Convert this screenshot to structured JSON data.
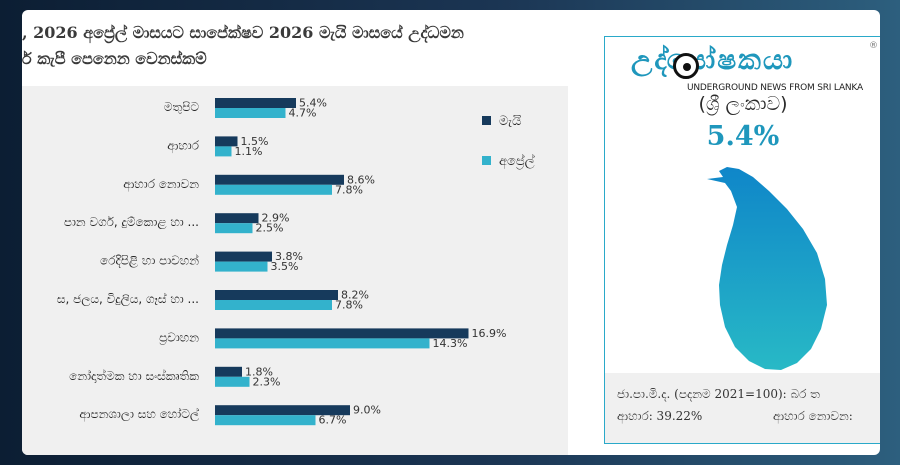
{
  "title_lines": [
    ", 2026 අප්‍රේල් මාසයට සාපේක්ෂව 2026 මැයි මාසයේ උද්ධමන",
    "ර් කැපී පෙනෙන වෙනස්කම්"
  ],
  "chart_data": {
    "type": "bar",
    "orientation": "horizontal",
    "categories": [
      "මතුපිට",
      "ආහාර",
      "ආහාර නොවන",
      "පාන වර්ග, දුම්කොළ හා ...",
      "රෙදිපිළි හා පාවහන්",
      "ස, ජලය, විදුලිය, ගෑස් හා ...",
      "ප්‍රවාහන",
      "නෝදාත්මක හා සංස්කෘතික",
      "ආපනශාලා සහ හෝටල්"
    ],
    "series": [
      {
        "name": "මැයි",
        "color": "#163a5c",
        "values": [
          5.4,
          1.5,
          8.6,
          2.9,
          3.8,
          8.2,
          16.9,
          1.8,
          9.0
        ]
      },
      {
        "name": "අප්‍රේල්",
        "color": "#33b2cc",
        "values": [
          4.7,
          1.1,
          7.8,
          2.5,
          3.5,
          7.8,
          14.3,
          2.3,
          6.7
        ]
      }
    ],
    "value_labels": [
      [
        "5.4%",
        "4.7%"
      ],
      [
        "1.5%",
        "1.1%"
      ],
      [
        "8.6%",
        "7.8%"
      ],
      [
        "2.9%",
        "2.5%"
      ],
      [
        "3.8%",
        "3.5%"
      ],
      [
        "8.2%",
        "7.8%"
      ],
      [
        "16.9%",
        "14.3%"
      ],
      [
        "1.8%",
        "2.3%"
      ],
      [
        "9.0%",
        "6.7%"
      ]
    ],
    "xlim": [
      0,
      20
    ],
    "grid": false,
    "legend_position": "top-right"
  },
  "map_panel": {
    "logo_text": "උද්‍ඝෝෂකයා",
    "logo_reg": "®",
    "logo_tagline": "UNDERGROUND NEWS FROM SRI LANKA",
    "country_label": "(ශ්‍රී ලංකාව)",
    "headline_value": "5.4%",
    "map_gradient": [
      "#0f86c9",
      "#28b9c6"
    ],
    "footer_line1": "ජා.පා.මි.ද. (පදනම 2021=100): බර ත",
    "footer_food": "ආහාර: 39.22%",
    "footer_nonfood": "ආහාර නොවන:"
  }
}
